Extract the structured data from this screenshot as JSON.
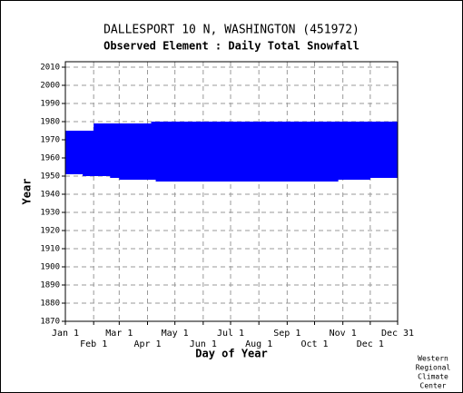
{
  "chart_data": {
    "type": "range",
    "title": "DALLESPORT 10 N, WASHINGTON   (451972)",
    "subtitle": "Observed Element : Daily Total Snowfall",
    "x_label": "Day of Year",
    "y_label": "Year",
    "note": [
      "Western",
      "Regional",
      "Climate",
      "Center"
    ],
    "color": "#0000ff",
    "grid": true,
    "xlim": [
      1,
      365
    ],
    "ylim": [
      1870,
      2013
    ],
    "xticks": [
      {
        "value": 1,
        "label": "Jan 1"
      },
      {
        "value": 32,
        "label": "Feb 1"
      },
      {
        "value": 60,
        "label": "Mar 1"
      },
      {
        "value": 91,
        "label": "Apr 1"
      },
      {
        "value": 121,
        "label": "May 1"
      },
      {
        "value": 152,
        "label": "Jun 1"
      },
      {
        "value": 182,
        "label": "Jul 1"
      },
      {
        "value": 213,
        "label": "Aug 1"
      },
      {
        "value": 244,
        "label": "Sep 1"
      },
      {
        "value": 274,
        "label": "Oct 1"
      },
      {
        "value": 305,
        "label": "Nov 1"
      },
      {
        "value": 335,
        "label": "Dec 1"
      },
      {
        "value": 365,
        "label": "Dec 31"
      }
    ],
    "yticks": [
      1870,
      1880,
      1890,
      1900,
      1910,
      1920,
      1930,
      1940,
      1950,
      1960,
      1970,
      1980,
      1990,
      2000,
      2010
    ],
    "years": [
      1979,
      1978,
      1977,
      1976,
      1975,
      1974,
      1973,
      1972,
      1971,
      1970,
      1969,
      1968,
      1967,
      1966,
      1965,
      1964,
      1963,
      1962,
      1961,
      1960,
      1959,
      1958,
      1957,
      1956,
      1955,
      1954,
      1953,
      1952,
      1951,
      1950,
      1949,
      1948,
      1947
    ],
    "start": [
      95,
      32,
      32,
      32,
      32,
      1,
      1,
      1,
      1,
      1,
      1,
      1,
      1,
      1,
      1,
      1,
      1,
      1,
      1,
      1,
      1,
      1,
      1,
      1,
      1,
      1,
      1,
      1,
      1,
      20,
      50,
      60,
      100
    ],
    "end": [
      365,
      365,
      365,
      365,
      365,
      365,
      365,
      365,
      365,
      365,
      365,
      365,
      365,
      365,
      365,
      365,
      365,
      365,
      365,
      365,
      365,
      365,
      365,
      365,
      365,
      365,
      365,
      365,
      365,
      365,
      365,
      335,
      300
    ]
  }
}
